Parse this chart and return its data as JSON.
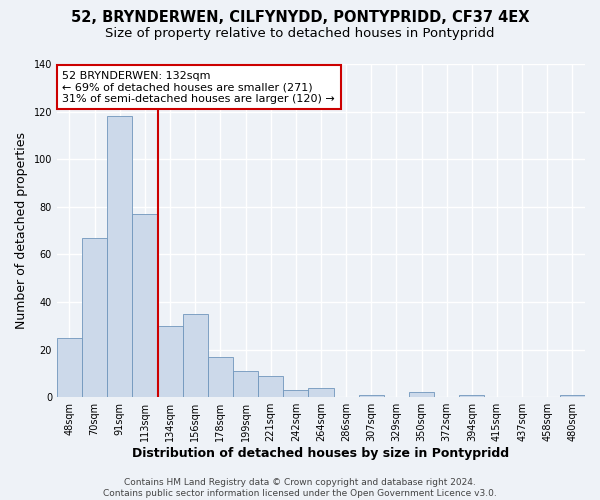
{
  "title": "52, BRYNDERWEN, CILFYNYDD, PONTYPRIDD, CF37 4EX",
  "subtitle": "Size of property relative to detached houses in Pontypridd",
  "xlabel": "Distribution of detached houses by size in Pontypridd",
  "ylabel": "Number of detached properties",
  "bar_labels": [
    "48sqm",
    "70sqm",
    "91sqm",
    "113sqm",
    "134sqm",
    "156sqm",
    "178sqm",
    "199sqm",
    "221sqm",
    "242sqm",
    "264sqm",
    "286sqm",
    "307sqm",
    "329sqm",
    "350sqm",
    "372sqm",
    "394sqm",
    "415sqm",
    "437sqm",
    "458sqm",
    "480sqm"
  ],
  "bar_values": [
    25,
    67,
    118,
    77,
    30,
    35,
    17,
    11,
    9,
    3,
    4,
    0,
    1,
    0,
    2,
    0,
    1,
    0,
    0,
    0,
    1
  ],
  "bar_color": "#ccd9ea",
  "bar_edge_color": "#7096bc",
  "ylim": [
    0,
    140
  ],
  "yticks": [
    0,
    20,
    40,
    60,
    80,
    100,
    120,
    140
  ],
  "property_line_color": "#cc0000",
  "property_line_bar_index": 3,
  "annotation_title": "52 BRYNDERWEN: 132sqm",
  "annotation_line1": "← 69% of detached houses are smaller (271)",
  "annotation_line2": "31% of semi-detached houses are larger (120) →",
  "annotation_box_color": "#cc0000",
  "footer_line1": "Contains HM Land Registry data © Crown copyright and database right 2024.",
  "footer_line2": "Contains public sector information licensed under the Open Government Licence v3.0.",
  "background_color": "#eef2f7",
  "grid_color": "#ffffff",
  "title_fontsize": 10.5,
  "subtitle_fontsize": 9.5,
  "axis_label_fontsize": 9,
  "tick_fontsize": 7,
  "footer_fontsize": 6.5,
  "annotation_fontsize": 8
}
